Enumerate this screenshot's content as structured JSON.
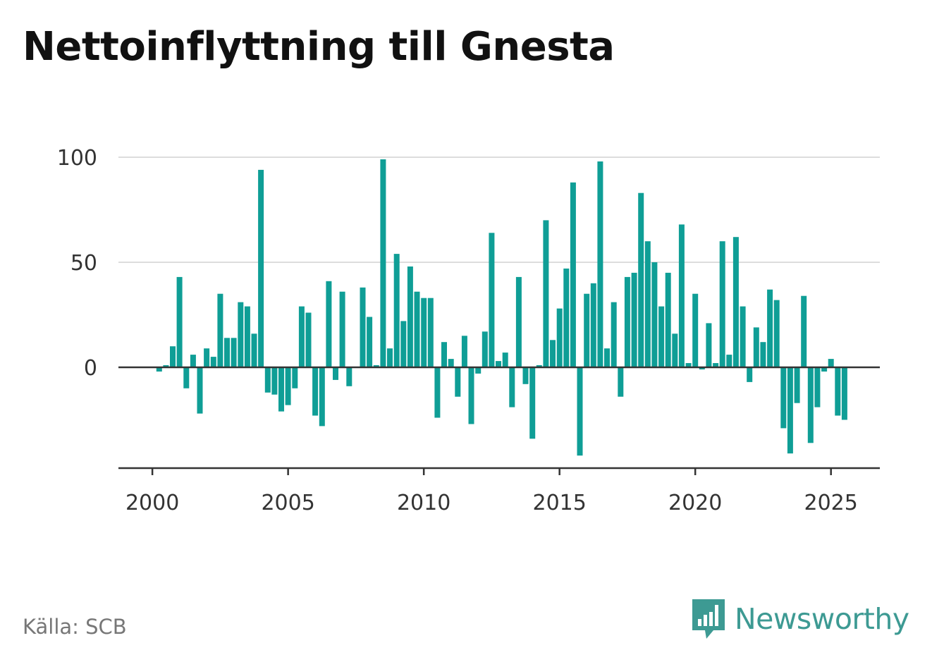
{
  "title": "Nettoinflyttning till Gnesta",
  "source": "Källa: SCB",
  "brand": {
    "name": "Newsworthy",
    "icon": "bar-chart-speech-bubble-icon"
  },
  "colors": {
    "bar": "#0f9e96",
    "grid": "#dddddd",
    "axis": "#333333",
    "brand": "#3d9a93"
  },
  "chart_data": {
    "type": "bar",
    "title": "Nettoinflyttning till Gnesta",
    "xlabel": "",
    "ylabel": "",
    "ylim": [
      -48,
      100
    ],
    "xlim": [
      1998.75,
      2026.8
    ],
    "yticks": [
      0,
      50,
      100
    ],
    "xticks": [
      2000,
      2005,
      2010,
      2015,
      2020,
      2025
    ],
    "grid": true,
    "x_unit": "quarter",
    "x": [
      "2000-Q1",
      "2000-Q2",
      "2000-Q3",
      "2000-Q4",
      "2001-Q1",
      "2001-Q2",
      "2001-Q3",
      "2001-Q4",
      "2002-Q1",
      "2002-Q2",
      "2002-Q3",
      "2002-Q4",
      "2003-Q1",
      "2003-Q2",
      "2003-Q3",
      "2003-Q4",
      "2004-Q1",
      "2004-Q2",
      "2004-Q3",
      "2004-Q4",
      "2005-Q1",
      "2005-Q2",
      "2005-Q3",
      "2005-Q4",
      "2006-Q1",
      "2006-Q2",
      "2006-Q3",
      "2006-Q4",
      "2007-Q1",
      "2007-Q2",
      "2007-Q3",
      "2007-Q4",
      "2008-Q1",
      "2008-Q2",
      "2008-Q3",
      "2008-Q4",
      "2009-Q1",
      "2009-Q2",
      "2009-Q3",
      "2009-Q4",
      "2010-Q1",
      "2010-Q2",
      "2010-Q3",
      "2010-Q4",
      "2011-Q1",
      "2011-Q2",
      "2011-Q3",
      "2011-Q4",
      "2012-Q1",
      "2012-Q2",
      "2012-Q3",
      "2012-Q4",
      "2013-Q1",
      "2013-Q2",
      "2013-Q3",
      "2013-Q4",
      "2014-Q1",
      "2014-Q2",
      "2014-Q3",
      "2014-Q4",
      "2015-Q1",
      "2015-Q2",
      "2015-Q3",
      "2015-Q4",
      "2016-Q1",
      "2016-Q2",
      "2016-Q3",
      "2016-Q4",
      "2017-Q1",
      "2017-Q2",
      "2017-Q3",
      "2017-Q4",
      "2018-Q1",
      "2018-Q2",
      "2018-Q3",
      "2018-Q4",
      "2019-Q1",
      "2019-Q2",
      "2019-Q3",
      "2019-Q4",
      "2020-Q1",
      "2020-Q2",
      "2020-Q3",
      "2020-Q4",
      "2021-Q1",
      "2021-Q2",
      "2021-Q3",
      "2021-Q4",
      "2022-Q1",
      "2022-Q2",
      "2022-Q3",
      "2022-Q4",
      "2023-Q1",
      "2023-Q2",
      "2023-Q3",
      "2023-Q4",
      "2024-Q1",
      "2024-Q2",
      "2024-Q3",
      "2024-Q4",
      "2025-Q1",
      "2025-Q2",
      "2025-Q3"
    ],
    "values": [
      0,
      -2,
      1,
      10,
      43,
      -10,
      6,
      -22,
      9,
      5,
      35,
      14,
      14,
      31,
      29,
      16,
      94,
      -12,
      -13,
      -21,
      -18,
      -10,
      29,
      26,
      -23,
      -28,
      41,
      -6,
      36,
      -9,
      0,
      38,
      24,
      1,
      99,
      9,
      54,
      22,
      48,
      36,
      33,
      33,
      -24,
      12,
      4,
      -14,
      15,
      -27,
      -3,
      17,
      64,
      3,
      7,
      -19,
      43,
      -8,
      -34,
      1,
      70,
      13,
      28,
      47,
      88,
      -42,
      35,
      40,
      98,
      9,
      31,
      -14,
      43,
      45,
      83,
      60,
      50,
      29,
      45,
      16,
      68,
      2,
      35,
      -1,
      21,
      2,
      60,
      6,
      62,
      29,
      -7,
      19,
      12,
      37,
      32,
      -29,
      -41,
      -17,
      34,
      -36,
      -19,
      -2,
      4,
      -23,
      -25
    ]
  }
}
